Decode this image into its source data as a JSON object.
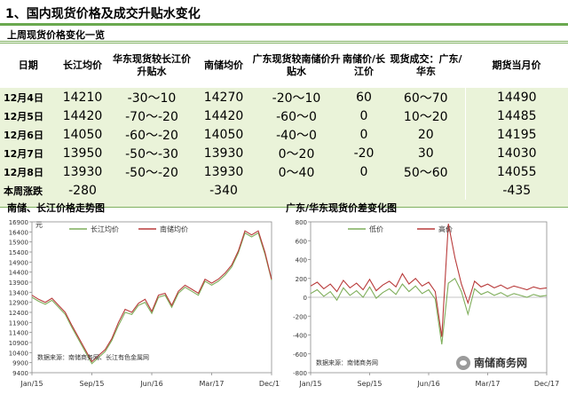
{
  "section": {
    "title": "1、国内现货价格及成交升贴水变化"
  },
  "table": {
    "caption": "上周现货价格变化一览",
    "headers": [
      "日期",
      "长江均价",
      "华东现货较长江价升贴水",
      "南储均价",
      "广东现货较南储价升贴水",
      "南储价/长江价",
      "现货成交：广东/华东",
      "期货当月价"
    ],
    "rows": [
      [
        "12月4日",
        "14210",
        "-30～10",
        "14270",
        "-20～10",
        "60",
        "60～70",
        "14490"
      ],
      [
        "12月5日",
        "14420",
        "-70～-20",
        "14420",
        "-60～0",
        "0",
        "10～20",
        "14485"
      ],
      [
        "12月6日",
        "14050",
        "-60～-20",
        "14050",
        "-40～0",
        "0",
        "20",
        "14195"
      ],
      [
        "12月7日",
        "13950",
        "-50～-30",
        "13930",
        "0～20",
        "-20",
        "30",
        "14030"
      ],
      [
        "12月8日",
        "13930",
        "-50～-20",
        "13930",
        "0～40",
        "0",
        "50～60",
        "14055"
      ]
    ],
    "weekly": [
      "本周涨跌",
      "-280",
      "",
      "-340",
      "",
      "",
      "",
      "-435"
    ]
  },
  "chart_data": [
    {
      "type": "line",
      "title": "南储、长江价格走势图",
      "ylabel": "元",
      "ylim": [
        9400,
        16900
      ],
      "yticks": [
        9400,
        9900,
        10400,
        10900,
        11400,
        11900,
        12400,
        12900,
        13400,
        13900,
        14400,
        14900,
        15400,
        15900,
        16400,
        16900
      ],
      "xticks": [
        "Jan/15",
        "Sep/15",
        "Jun/16",
        "Mar/17",
        "Dec/17"
      ],
      "source_note": "数据来源：南储商务网、长江有色金属网",
      "grid": false,
      "legend": "top",
      "series": [
        {
          "name": "长江均价",
          "color": "#7fae5b",
          "x": [
            0,
            1,
            2,
            3,
            4,
            5,
            6,
            7,
            8,
            9,
            10,
            11,
            12,
            13,
            14,
            15,
            16,
            17,
            18,
            19,
            20,
            21,
            22,
            23,
            24,
            25,
            26,
            27,
            28,
            29,
            30,
            31,
            32,
            33,
            34,
            35,
            36
          ],
          "values": [
            13150,
            12950,
            12800,
            13000,
            12650,
            12300,
            11650,
            11050,
            10450,
            9850,
            10150,
            10450,
            11000,
            11750,
            12400,
            12300,
            12750,
            12900,
            12350,
            13150,
            13250,
            12650,
            13350,
            13650,
            13450,
            13250,
            13950,
            13750,
            13950,
            14250,
            14650,
            15350,
            16350,
            16150,
            16350,
            15300,
            14000
          ]
        },
        {
          "name": "南储均价",
          "color": "#b83a3a",
          "x": [
            0,
            1,
            2,
            3,
            4,
            5,
            6,
            7,
            8,
            9,
            10,
            11,
            12,
            13,
            14,
            15,
            16,
            17,
            18,
            19,
            20,
            21,
            22,
            23,
            24,
            25,
            26,
            27,
            28,
            29,
            30,
            31,
            32,
            33,
            34,
            35,
            36
          ],
          "values": [
            13250,
            13050,
            12900,
            13100,
            12750,
            12400,
            11750,
            11150,
            10550,
            9950,
            10250,
            10550,
            11100,
            11900,
            12550,
            12400,
            12850,
            13050,
            12450,
            13250,
            13350,
            12750,
            13450,
            13750,
            13550,
            13350,
            14050,
            13850,
            14050,
            14350,
            14750,
            15450,
            16450,
            16250,
            16450,
            15400,
            14050
          ]
        }
      ]
    },
    {
      "type": "line",
      "title": "广东/华东现货价差变化图",
      "ylim": [
        -800,
        800
      ],
      "yticks": [
        -800,
        -600,
        -400,
        -200,
        0,
        200,
        400,
        600,
        800
      ],
      "xticks": [
        "Jan/15",
        "Sep/15",
        "Jun/16",
        "Mar/17",
        "Dec/17"
      ],
      "source_note": "数据来源：南储商务网",
      "grid": false,
      "legend": "top",
      "series": [
        {
          "name": "低价",
          "color": "#7fae5b",
          "x": [
            0,
            1,
            2,
            3,
            4,
            5,
            6,
            7,
            8,
            9,
            10,
            11,
            12,
            13,
            14,
            15,
            16,
            17,
            18,
            19,
            20,
            21,
            22,
            23,
            24,
            25,
            26,
            27,
            28,
            29,
            30,
            31,
            32,
            33,
            34,
            35,
            36
          ],
          "values": [
            40,
            80,
            10,
            60,
            -30,
            100,
            20,
            70,
            0,
            110,
            -10,
            50,
            90,
            30,
            140,
            60,
            120,
            40,
            80,
            -20,
            -500,
            150,
            200,
            60,
            -180,
            90,
            30,
            60,
            20,
            50,
            10,
            40,
            20,
            0,
            30,
            10,
            20
          ]
        },
        {
          "name": "高价",
          "color": "#b83a3a",
          "x": [
            0,
            1,
            2,
            3,
            4,
            5,
            6,
            7,
            8,
            9,
            10,
            11,
            12,
            13,
            14,
            15,
            16,
            17,
            18,
            19,
            20,
            21,
            22,
            23,
            24,
            25,
            26,
            27,
            28,
            29,
            30,
            31,
            32,
            33,
            34,
            35,
            36
          ],
          "values": [
            120,
            160,
            90,
            140,
            60,
            180,
            100,
            150,
            80,
            190,
            70,
            130,
            170,
            110,
            250,
            140,
            200,
            120,
            160,
            60,
            -420,
            780,
            420,
            140,
            -60,
            170,
            110,
            140,
            100,
            130,
            90,
            120,
            100,
            80,
            110,
            90,
            100
          ]
        }
      ]
    }
  ],
  "watermark": {
    "text": "南储商务网"
  }
}
